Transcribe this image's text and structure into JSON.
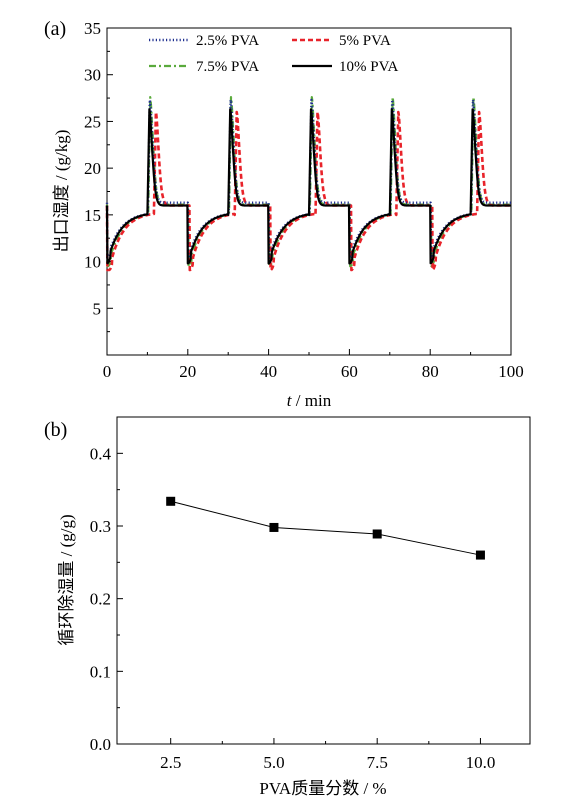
{
  "chart_data": [
    {
      "panel_label": "(a)",
      "type": "line",
      "xlabel_italic": "t",
      "xlabel_rest": " / min",
      "ylabel": "出口湿度 / (g/kg)",
      "xlim": [
        0,
        100
      ],
      "ylim": [
        0,
        35
      ],
      "xticks": [
        0,
        20,
        40,
        60,
        80,
        100
      ],
      "yticks": [
        5,
        10,
        15,
        20,
        25,
        30,
        35
      ],
      "legend_position": "top",
      "series": [
        {
          "name": "2.5% PVA",
          "color": "#1f2f8f",
          "style": "dotted",
          "peak": 27.3,
          "trough": 10.4,
          "plateau": 16.3,
          "rise_at": 10.1,
          "fall_at": 20.1
        },
        {
          "name": "5% PVA",
          "color": "#e8232a",
          "style": "dashed",
          "peak": 26.0,
          "trough": 9.1,
          "plateau": 16.0,
          "rise_at": 11.6,
          "fall_at": 20.5
        },
        {
          "name": "7.5% PVA",
          "color": "#5aaa3c",
          "style": "dashdot",
          "peak": 27.6,
          "trough": 9.5,
          "plateau": 16.1,
          "rise_at": 10.2,
          "fall_at": 20.2
        },
        {
          "name": "10% PVA",
          "color": "#000000",
          "style": "solid",
          "peak": 26.3,
          "trough": 9.8,
          "plateau": 16.0,
          "rise_at": 10.0,
          "fall_at": 20.0
        }
      ],
      "cycle_period_min": 20
    },
    {
      "panel_label": "(b)",
      "type": "line",
      "xlabel": "PVA质量分数 / %",
      "ylabel": "循环除湿量 / (g/g)",
      "xlim": [
        1.2,
        11.2
      ],
      "ylim": [
        0.0,
        0.45
      ],
      "xticks": [
        "2.5",
        "5.0",
        "7.5",
        "10.0"
      ],
      "yticks": [
        "0.0",
        "0.1",
        "0.2",
        "0.3",
        "0.4"
      ],
      "x": [
        2.5,
        5.0,
        7.5,
        10.0
      ],
      "y": [
        0.334,
        0.298,
        0.289,
        0.26
      ],
      "marker": "square",
      "color": "#000000"
    }
  ]
}
